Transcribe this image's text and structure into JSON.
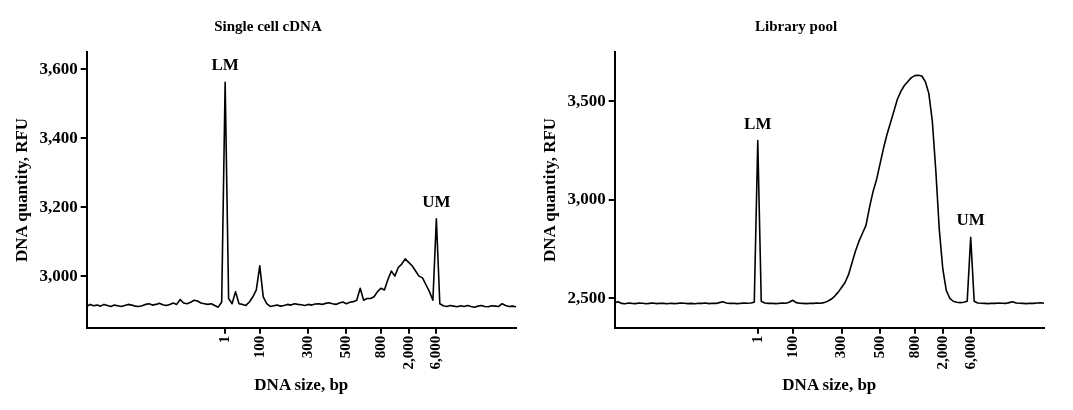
{
  "chart_data": [
    {
      "type": "line",
      "title": "Single cell cDNA",
      "xlabel": "DNA size, bp",
      "ylabel": "DNA quantity, RFU",
      "color": "#000000",
      "categories": [
        null,
        null,
        null,
        null,
        null,
        null,
        null,
        null,
        null,
        null,
        null,
        null,
        null,
        null,
        null,
        null,
        null,
        null,
        null,
        null,
        null,
        null,
        null,
        null,
        null,
        null,
        null,
        null,
        null,
        null,
        null,
        null,
        null,
        null,
        null,
        null,
        null,
        null,
        null,
        null,
        "1",
        null,
        null,
        null,
        null,
        null,
        null,
        null,
        null,
        null,
        "100",
        null,
        null,
        null,
        null,
        null,
        null,
        null,
        null,
        null,
        null,
        null,
        null,
        null,
        "300",
        null,
        null,
        null,
        null,
        null,
        null,
        null,
        null,
        null,
        null,
        "500",
        null,
        null,
        null,
        null,
        null,
        null,
        null,
        null,
        null,
        "800",
        null,
        null,
        null,
        null,
        null,
        null,
        null,
        "2,000",
        null,
        null,
        null,
        null,
        null,
        null,
        null,
        "6,000",
        null,
        null,
        null,
        null,
        null,
        null,
        null,
        null,
        null,
        null,
        null,
        null,
        null,
        null,
        null,
        null,
        null,
        null,
        null,
        null,
        null,
        null,
        null
      ],
      "values": [
        2912,
        2918,
        2914,
        2916,
        2913,
        2918,
        2915,
        2912,
        2916,
        2914,
        2912,
        2915,
        2918,
        2916,
        2913,
        2912,
        2914,
        2918,
        2920,
        2916,
        2918,
        2921,
        2917,
        2915,
        2918,
        2922,
        2918,
        2932,
        2922,
        2920,
        2924,
        2930,
        2928,
        2922,
        2920,
        2918,
        2920,
        2915,
        2910,
        2925,
        3562,
        2935,
        2920,
        2955,
        2920,
        2918,
        2915,
        2925,
        2940,
        2960,
        3030,
        2940,
        2920,
        2912,
        2914,
        2916,
        2913,
        2915,
        2918,
        2916,
        2920,
        2918,
        2917,
        2915,
        2918,
        2916,
        2919,
        2920,
        2918,
        2921,
        2923,
        2920,
        2918,
        2922,
        2925,
        2920,
        2924,
        2926,
        2930,
        2965,
        2930,
        2935,
        2935,
        2940,
        2955,
        2965,
        2960,
        2990,
        3015,
        3000,
        3025,
        3035,
        3050,
        3040,
        3030,
        3015,
        3000,
        2995,
        2975,
        2955,
        2930,
        3166,
        2920,
        2914,
        2912,
        2915,
        2913,
        2911,
        2914,
        2912,
        2915,
        2912,
        2910,
        2913,
        2915,
        2912,
        2911,
        2914,
        2913,
        2912,
        2920,
        2915,
        2912,
        2913,
        2911
      ],
      "ylim": [
        2850,
        3650
      ],
      "yticks": [
        {
          "value": 3000,
          "label": "3,000"
        },
        {
          "value": 3200,
          "label": "3,200"
        },
        {
          "value": 3400,
          "label": "3,400"
        },
        {
          "value": 3600,
          "label": "3,600"
        }
      ],
      "annotations": [
        {
          "text": "LM",
          "x": "1",
          "y": 3562
        },
        {
          "text": "UM",
          "x": "6,000",
          "y": 3166
        }
      ],
      "grid": false,
      "legend": false
    },
    {
      "type": "line",
      "title": "Library pool",
      "xlabel": "DNA size, bp",
      "ylabel": "DNA quantity, RFU",
      "color": "#000000",
      "categories": [
        null,
        null,
        null,
        null,
        null,
        null,
        null,
        null,
        null,
        null,
        null,
        null,
        null,
        null,
        null,
        null,
        null,
        null,
        null,
        null,
        null,
        null,
        null,
        null,
        null,
        null,
        null,
        null,
        null,
        null,
        null,
        null,
        null,
        null,
        null,
        null,
        null,
        null,
        null,
        null,
        null,
        "1",
        null,
        null,
        null,
        null,
        null,
        null,
        null,
        null,
        null,
        "100",
        null,
        null,
        null,
        null,
        null,
        null,
        null,
        null,
        null,
        null,
        null,
        null,
        null,
        "300",
        null,
        null,
        null,
        null,
        null,
        null,
        null,
        null,
        null,
        null,
        "500",
        null,
        null,
        null,
        null,
        null,
        null,
        null,
        null,
        null,
        "800",
        null,
        null,
        null,
        null,
        null,
        null,
        null,
        "2,000",
        null,
        null,
        null,
        null,
        null,
        null,
        null,
        "6,000",
        null,
        null,
        null,
        null,
        null,
        null,
        null,
        null,
        null,
        null,
        null,
        null,
        null,
        null,
        null,
        null,
        null,
        null,
        null,
        null,
        null
      ],
      "values": [
        2478,
        2482,
        2474,
        2472,
        2476,
        2474,
        2473,
        2476,
        2475,
        2472,
        2474,
        2476,
        2473,
        2475,
        2474,
        2472,
        2475,
        2473,
        2474,
        2476,
        2475,
        2473,
        2474,
        2472,
        2475,
        2474,
        2476,
        2473,
        2475,
        2474,
        2478,
        2482,
        2476,
        2474,
        2475,
        2473,
        2474,
        2476,
        2475,
        2476,
        2480,
        3300,
        2485,
        2476,
        2474,
        2475,
        2473,
        2474,
        2476,
        2475,
        2480,
        2490,
        2478,
        2475,
        2474,
        2473,
        2475,
        2474,
        2476,
        2475,
        2478,
        2485,
        2495,
        2510,
        2530,
        2555,
        2580,
        2620,
        2680,
        2740,
        2790,
        2830,
        2870,
        2960,
        3040,
        3100,
        3180,
        3260,
        3330,
        3390,
        3450,
        3510,
        3550,
        3580,
        3600,
        3620,
        3630,
        3632,
        3628,
        3600,
        3540,
        3400,
        3150,
        2850,
        2650,
        2540,
        2500,
        2485,
        2480,
        2478,
        2480,
        2485,
        2810,
        2485,
        2476,
        2475,
        2474,
        2473,
        2475,
        2474,
        2476,
        2475,
        2474,
        2478,
        2482,
        2476,
        2475,
        2474,
        2473,
        2475,
        2474,
        2476,
        2477,
        2475
      ],
      "ylim": [
        2350,
        3750
      ],
      "yticks": [
        {
          "value": 2500,
          "label": "2,500"
        },
        {
          "value": 3000,
          "label": "3,000"
        },
        {
          "value": 3500,
          "label": "3,500"
        }
      ],
      "annotations": [
        {
          "text": "LM",
          "x": "1",
          "y": 3300
        },
        {
          "text": "UM",
          "x": "6,000",
          "y": 2810
        }
      ],
      "grid": false,
      "legend": false
    }
  ]
}
